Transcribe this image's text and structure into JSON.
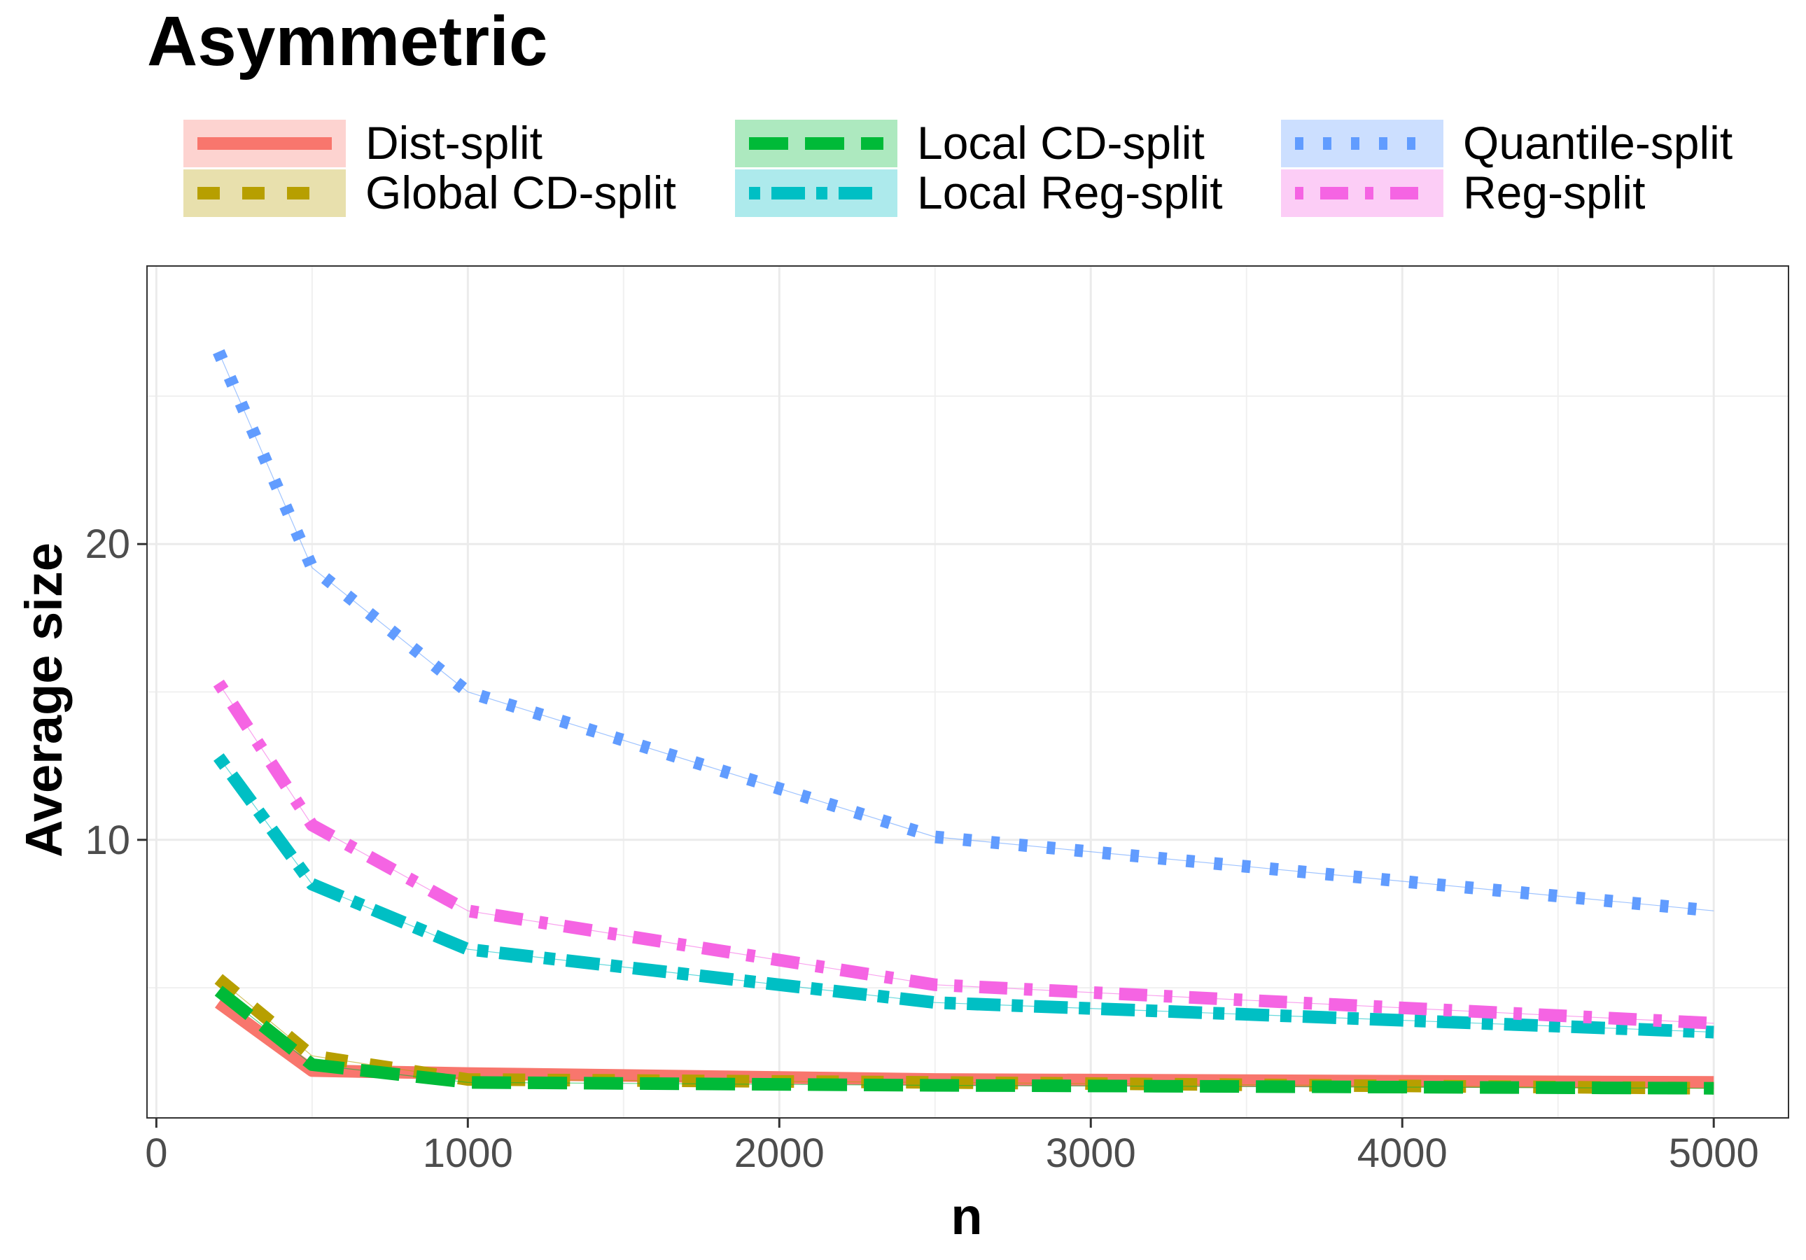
{
  "chart_data": {
    "type": "line",
    "title": "Asymmetric",
    "xlabel": "n",
    "ylabel": "Average size",
    "x": [
      200,
      500,
      1000,
      2500,
      5000
    ],
    "xlim": [
      -30,
      5240
    ],
    "ylim": [
      0.6,
      29.4
    ],
    "xticks": [
      0,
      1000,
      2000,
      3000,
      4000,
      5000
    ],
    "yticks": [
      10,
      20
    ],
    "grid": true,
    "legend_position": "top",
    "series": [
      {
        "name": "Dist-split",
        "values": [
          4.5,
          2.2,
          2.1,
          1.9,
          1.8
        ],
        "color": "#F8766D",
        "dash": "solid"
      },
      {
        "name": "Global CD-split",
        "values": [
          5.3,
          2.7,
          1.9,
          1.8,
          1.6
        ],
        "color": "#B79F00",
        "dash": "dashed"
      },
      {
        "name": "Local CD-split",
        "values": [
          4.9,
          2.4,
          1.8,
          1.7,
          1.6
        ],
        "color": "#00BA38",
        "dash": "longdash"
      },
      {
        "name": "Local Reg-split",
        "values": [
          12.8,
          8.5,
          6.3,
          4.5,
          3.5
        ],
        "color": "#00BFC4",
        "dash": "twodash"
      },
      {
        "name": "Quantile-split",
        "values": [
          26.5,
          19.2,
          15.0,
          10.1,
          7.6
        ],
        "color": "#619CFF",
        "dash": "dotted"
      },
      {
        "name": "Reg-split",
        "values": [
          15.3,
          10.5,
          7.6,
          5.1,
          3.8
        ],
        "color": "#F564E3",
        "dash": "dotdash"
      }
    ]
  }
}
